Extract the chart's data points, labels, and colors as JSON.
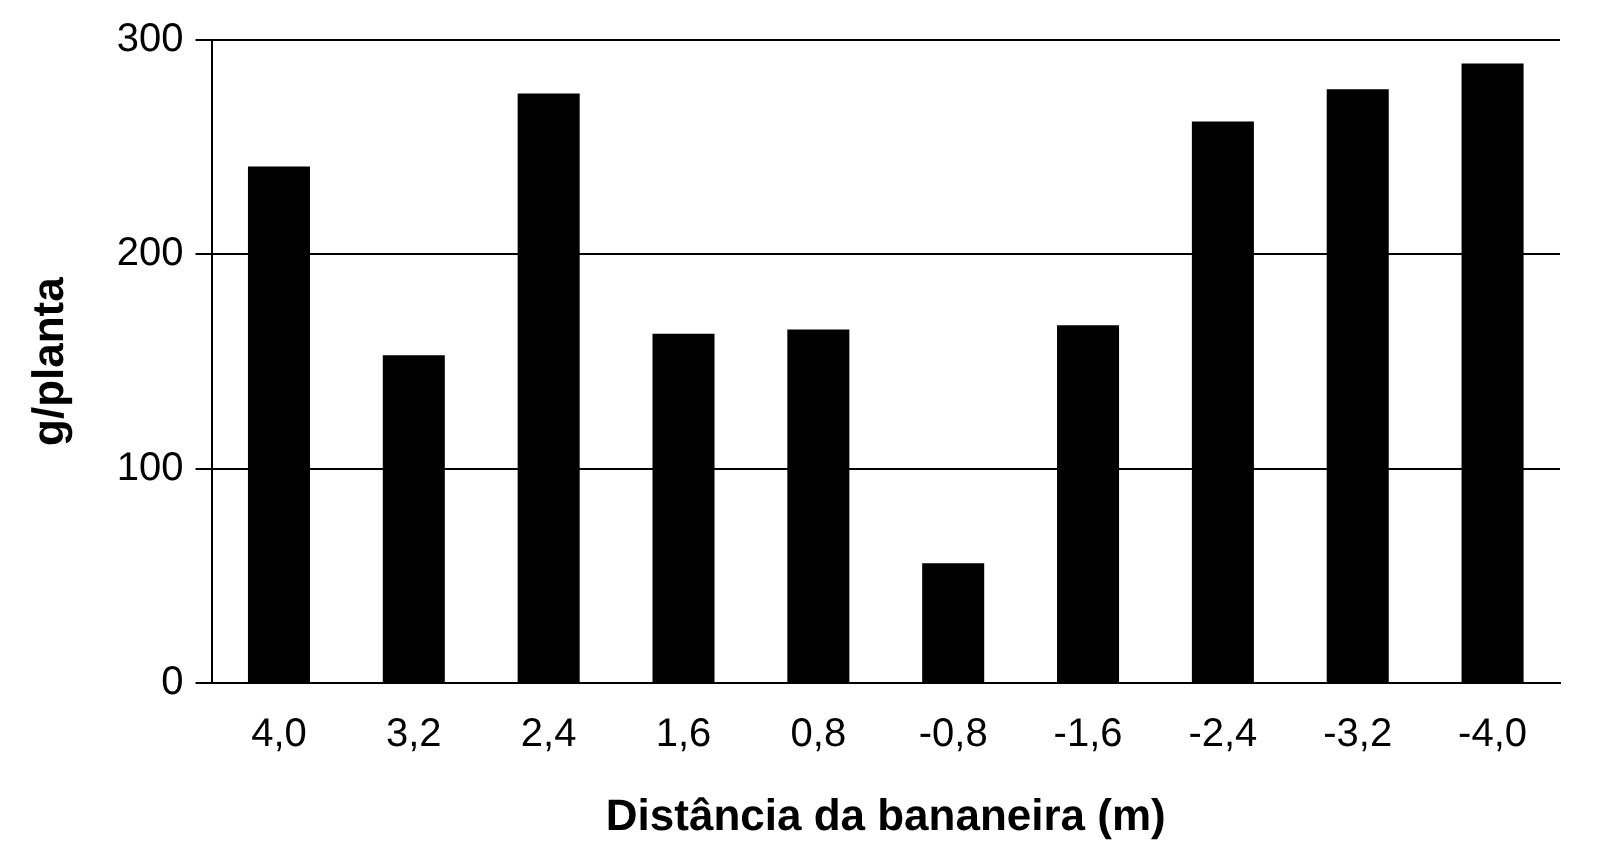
{
  "chart_data": {
    "type": "bar",
    "xlabel": "Distância da bananeira (m)",
    "ylabel": "g/planta",
    "categories": [
      "4,0",
      "3,2",
      "2,4",
      "1,6",
      "0,8",
      "-0,8",
      "-1,6",
      "-2,4",
      "-3,2",
      "-4,0"
    ],
    "values": [
      241,
      153,
      275,
      163,
      165,
      56,
      167,
      262,
      277,
      289
    ],
    "color": "#000000",
    "ylim": [
      0,
      300
    ],
    "yticks": [
      0,
      100,
      200,
      300
    ],
    "grid": "y",
    "legend": false
  }
}
